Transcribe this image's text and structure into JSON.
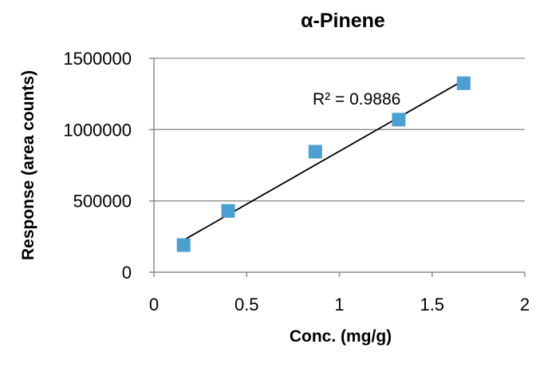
{
  "chart_data": {
    "type": "scatter",
    "title": "α-Pinene",
    "xlabel": "Conc. (mg/g)",
    "ylabel": "Response (area counts)",
    "xlim": [
      0,
      2
    ],
    "ylim": [
      0,
      1500000
    ],
    "x_ticks": [
      0,
      0.5,
      1,
      1.5,
      2
    ],
    "x_tick_labels": [
      "0",
      "0.5",
      "1",
      "1.5",
      "2"
    ],
    "y_ticks": [
      0,
      500000,
      1000000,
      1500000
    ],
    "y_tick_labels": [
      "0",
      "500000",
      "1000000",
      "1500000"
    ],
    "grid": "horizontal",
    "legend": "none",
    "series": [
      {
        "marker": "square",
        "color": "#4b9fd1",
        "x": [
          0.16,
          0.4,
          0.87,
          1.32,
          1.67
        ],
        "y": [
          190000,
          430000,
          845000,
          1070000,
          1325000
        ]
      }
    ],
    "trendline": {
      "type": "linear",
      "x": [
        0.16,
        1.67
      ],
      "y": [
        225000,
        1345000
      ],
      "color": "#000000"
    },
    "annotations": [
      {
        "text": "R² = 0.9886"
      }
    ]
  }
}
